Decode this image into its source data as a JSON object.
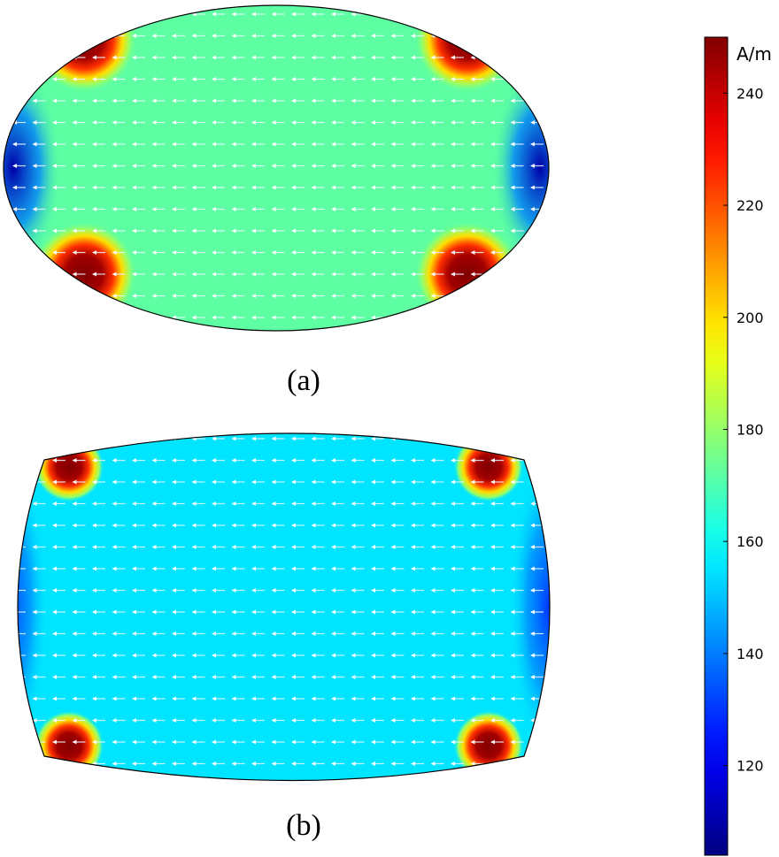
{
  "chart_data": [
    {
      "type": "heatmap",
      "panel_label": "(a)",
      "shape": "ellipse",
      "field_min": 105,
      "field_max": 250,
      "background_level": 172,
      "hotspots": [
        {
          "corner": "top-left",
          "peak": 250
        },
        {
          "corner": "top-right",
          "peak": 250
        },
        {
          "corner": "bottom-left",
          "peak": 250
        },
        {
          "corner": "bottom-right",
          "peak": 250
        }
      ],
      "low_regions": [
        {
          "side": "left",
          "level": 110
        },
        {
          "side": "right",
          "level": 110
        }
      ],
      "vector_arrows": "white arrows pointing left"
    },
    {
      "type": "heatmap",
      "panel_label": "(b)",
      "shape": "barrel",
      "field_min": 105,
      "field_max": 250,
      "background_level": 155,
      "hotspots": [
        {
          "corner": "top-left",
          "peak": 250
        },
        {
          "corner": "top-right",
          "peak": 250
        },
        {
          "corner": "bottom-left",
          "peak": 250
        },
        {
          "corner": "bottom-right",
          "peak": 250
        }
      ],
      "low_regions": [
        {
          "side": "left",
          "level": 130
        },
        {
          "side": "right",
          "level": 130
        }
      ],
      "vector_arrows": "white arrows pointing left"
    }
  ],
  "colorbar": {
    "unit": "A/m",
    "min": 104,
    "max": 250,
    "ticks": [
      240,
      220,
      200,
      180,
      160,
      140,
      120
    ],
    "colormap": [
      "#00007f",
      "#0000ff",
      "#00ffff",
      "#ffff00",
      "#ff0000",
      "#7f0000"
    ]
  }
}
